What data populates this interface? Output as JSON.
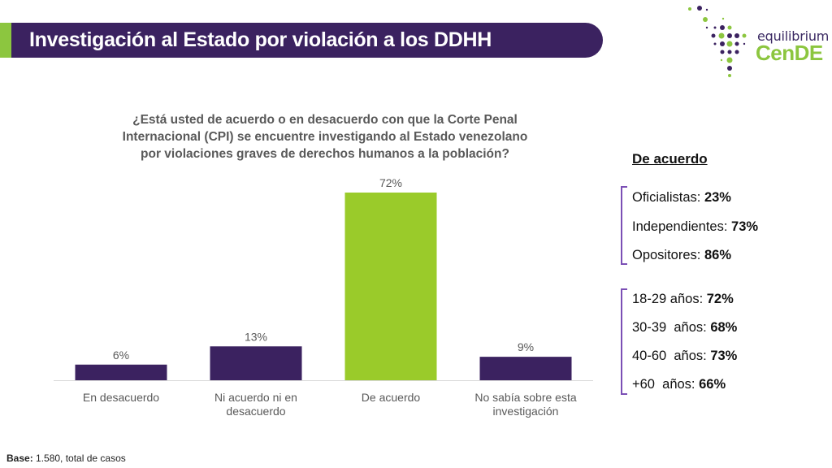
{
  "header": {
    "title": "Investigación al Estado por violación a los DDHH",
    "accent_color": "#8cc63f",
    "bar_color": "#3b2260"
  },
  "logo": {
    "line1": "equilibrium",
    "line2": "CenDE"
  },
  "chart_data": {
    "type": "bar",
    "title": "¿Está usted de acuerdo o en desacuerdo con que la Corte Penal Internacional (CPI) se encuentre investigando al Estado venezolano por violaciones graves de derechos humanos a la población?",
    "title_lines": [
      "¿Está usted de acuerdo o en desacuerdo con que la Corte Penal",
      "Internacional (CPI) se encuentre investigando al Estado venezolano",
      "por violaciones graves de derechos humanos a la población?"
    ],
    "categories": [
      "En desacuerdo",
      "Ni acuerdo ni en desacuerdo",
      "De acuerdo",
      "No sabía sobre esta investigación"
    ],
    "category_lines": [
      [
        "En desacuerdo"
      ],
      [
        "Ni acuerdo ni en",
        "desacuerdo"
      ],
      [
        "De acuerdo"
      ],
      [
        "No sabía sobre esta",
        "investigación"
      ]
    ],
    "values": [
      6,
      13,
      72,
      9
    ],
    "data_labels": [
      "6%",
      "13%",
      "72%",
      "9%"
    ],
    "colors": [
      "#3b2260",
      "#3b2260",
      "#9acb2a",
      "#3b2260"
    ],
    "xlabel": "",
    "ylabel": "",
    "ylim": [
      0,
      72
    ],
    "grid": false,
    "legend": "none"
  },
  "side_panel": {
    "heading": "De acuerdo",
    "groups": [
      {
        "items": [
          {
            "label": "Oficialistas: ",
            "value": "23%"
          },
          {
            "label": "Independientes: ",
            "value": "73%"
          },
          {
            "label": "Opositores: ",
            "value": "86%"
          }
        ]
      },
      {
        "items": [
          {
            "label": "18-29 años: ",
            "value": "72%"
          },
          {
            "label": "30-39  años: ",
            "value": "68%"
          },
          {
            "label": "40-60  años: ",
            "value": "73%"
          },
          {
            "label": "+60  años: ",
            "value": "66%"
          }
        ]
      }
    ],
    "bracket_color": "#7b4fb5"
  },
  "footer": {
    "base_label": "Base:",
    "base_text": " 1.580, total de casos"
  }
}
